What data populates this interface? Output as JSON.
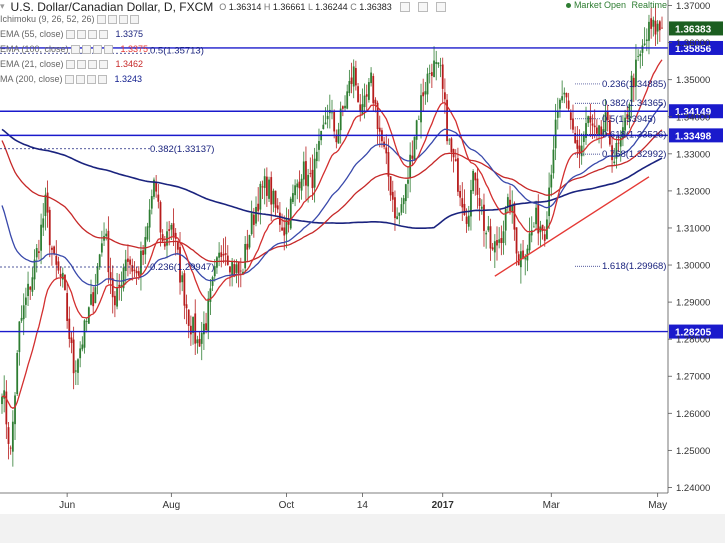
{
  "header": {
    "symbol": "U.S. Dollar/Canadian Dollar, D, FXCM",
    "o_label": "O",
    "o_value": "1.36314",
    "h_label": "H",
    "h_value": "1.36661",
    "l_label": "L",
    "l_value": "1.36244",
    "c_label": "C",
    "c_value": "1.36383",
    "status": "Market Open",
    "feed": "Realtime"
  },
  "indicators": [
    {
      "name": "Ichimoku (9, 26, 52, 26)",
      "value": "",
      "color": "#888888"
    },
    {
      "name": "EMA (55, close)",
      "value": "1.3375",
      "color": "#1a237e"
    },
    {
      "name": "EMA (100, close)",
      "value": "1.3375",
      "color": "#e53935"
    },
    {
      "name": "EMA (21, close)",
      "value": "1.3462",
      "color": "#c62828"
    },
    {
      "name": "MA (200, close)",
      "value": "1.3243",
      "color": "#0d1a8c"
    }
  ],
  "chart_data": {
    "type": "candlestick",
    "ylim": [
      1.2385,
      1.3715
    ],
    "y_ticks": [
      "1.37000",
      "1.36000",
      "1.35000",
      "1.34000",
      "1.33000",
      "1.32000",
      "1.31000",
      "1.30000",
      "1.29000",
      "1.28000",
      "1.27000",
      "1.26000",
      "1.25000",
      "1.24000"
    ],
    "y_tick_values": [
      1.37,
      1.36,
      1.35,
      1.34,
      1.33,
      1.32,
      1.31,
      1.3,
      1.29,
      1.28,
      1.27,
      1.26,
      1.25,
      1.24
    ],
    "x_ticks": [
      {
        "label": "Jun",
        "bar": 30
      },
      {
        "label": "Aug",
        "bar": 78
      },
      {
        "label": "Oct",
        "bar": 131
      },
      {
        "label": "14",
        "bar": 166
      },
      {
        "label": "2017",
        "bar": 203
      },
      {
        "label": "Mar",
        "bar": 253
      },
      {
        "label": "May",
        "bar": 302
      }
    ],
    "n_bars": 305,
    "anchors": [
      [
        0,
        1.268
      ],
      [
        4,
        1.249
      ],
      [
        8,
        1.283
      ],
      [
        15,
        1.3
      ],
      [
        20,
        1.316
      ],
      [
        24,
        1.3
      ],
      [
        28,
        1.295
      ],
      [
        33,
        1.272
      ],
      [
        38,
        1.282
      ],
      [
        42,
        1.292
      ],
      [
        47,
        1.31
      ],
      [
        52,
        1.288
      ],
      [
        57,
        1.303
      ],
      [
        62,
        1.297
      ],
      [
        66,
        1.305
      ],
      [
        70,
        1.323
      ],
      [
        74,
        1.305
      ],
      [
        78,
        1.312
      ],
      [
        82,
        1.298
      ],
      [
        86,
        1.286
      ],
      [
        90,
        1.279
      ],
      [
        94,
        1.285
      ],
      [
        98,
        1.297
      ],
      [
        102,
        1.306
      ],
      [
        106,
        1.3
      ],
      [
        110,
        1.297
      ],
      [
        114,
        1.309
      ],
      [
        118,
        1.318
      ],
      [
        122,
        1.322
      ],
      [
        126,
        1.315
      ],
      [
        130,
        1.31
      ],
      [
        134,
        1.318
      ],
      [
        138,
        1.326
      ],
      [
        142,
        1.322
      ],
      [
        146,
        1.33
      ],
      [
        150,
        1.342
      ],
      [
        154,
        1.335
      ],
      [
        158,
        1.344
      ],
      [
        162,
        1.352
      ],
      [
        166,
        1.34
      ],
      [
        170,
        1.349
      ],
      [
        174,
        1.336
      ],
      [
        178,
        1.324
      ],
      [
        182,
        1.312
      ],
      [
        186,
        1.32
      ],
      [
        190,
        1.336
      ],
      [
        194,
        1.347
      ],
      [
        198,
        1.354
      ],
      [
        202,
        1.351
      ],
      [
        206,
        1.332
      ],
      [
        210,
        1.323
      ],
      [
        214,
        1.314
      ],
      [
        218,
        1.325
      ],
      [
        222,
        1.311
      ],
      [
        226,
        1.303
      ],
      [
        230,
        1.309
      ],
      [
        234,
        1.317
      ],
      [
        238,
        1.302
      ],
      [
        242,
        1.306
      ],
      [
        246,
        1.312
      ],
      [
        250,
        1.31
      ],
      [
        254,
        1.333
      ],
      [
        258,
        1.346
      ],
      [
        262,
        1.338
      ],
      [
        266,
        1.33
      ],
      [
        270,
        1.339
      ],
      [
        274,
        1.333
      ],
      [
        278,
        1.338
      ],
      [
        282,
        1.329
      ],
      [
        286,
        1.334
      ],
      [
        290,
        1.349
      ],
      [
        294,
        1.356
      ],
      [
        298,
        1.363
      ],
      [
        301,
        1.3638
      ]
    ],
    "horizontal_levels": [
      {
        "label": "1.35856",
        "value": 1.35856
      },
      {
        "label": "1.34149",
        "value": 1.34149
      },
      {
        "label": "1.33498",
        "value": 1.33498
      },
      {
        "label": "1.28205",
        "value": 1.28205
      }
    ],
    "last_price": {
      "label": "1.36383",
      "value": 1.36383
    },
    "fib_old": [
      {
        "label": "0.5(1.35713)",
        "value": 1.35713
      },
      {
        "label": "0.382(1.33137)",
        "value": 1.33137
      },
      {
        "label": "0.236(1.29947)",
        "value": 1.29947
      }
    ],
    "fib_new": [
      {
        "label": "0.236(1.34885)",
        "value": 1.34885
      },
      {
        "label": "0.382(1.34365)",
        "value": 1.34365
      },
      {
        "label": "0.5(1.33945)",
        "value": 1.33945
      },
      {
        "label": "0.618(1.33526)",
        "value": 1.33526
      },
      {
        "label": "0.768(1.32992)",
        "value": 1.32992
      },
      {
        "label": "1.618(1.29968)",
        "value": 1.29968
      }
    ],
    "trendline": {
      "from": [
        227,
        1.297
      ],
      "to": [
        298,
        1.3238
      ]
    },
    "grid": false,
    "colors": {
      "up": "#2e7d32",
      "down": "#b71c1c",
      "level": "#1a1acc",
      "last": "#1b5e20",
      "trend": "#e53935",
      "ema21": "#d32f2f",
      "ema55": "#3949ab",
      "ema100": "#c62828",
      "ma200": "#1a237e"
    }
  }
}
